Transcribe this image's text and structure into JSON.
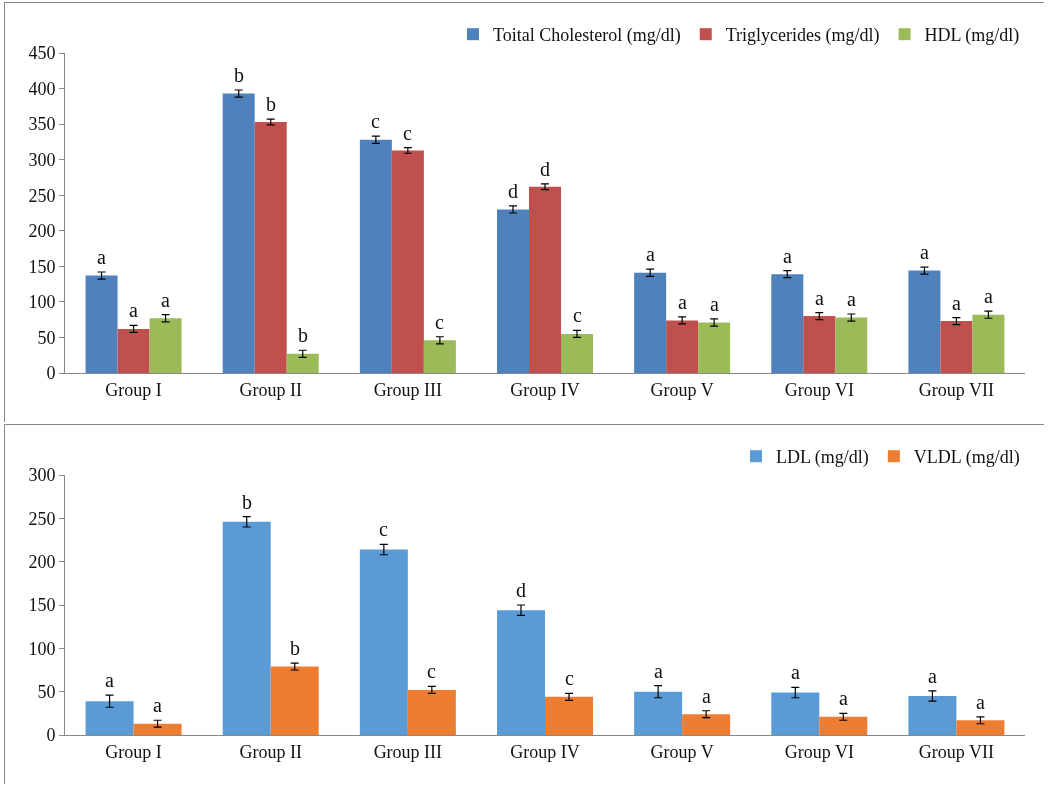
{
  "chart_data": [
    {
      "type": "bar",
      "categories": [
        "Group I",
        "Group II",
        "Group III",
        "Group IV",
        "Group V",
        "Group VI",
        "Group VII"
      ],
      "series": [
        {
          "name": "Toital Cholesterol (mg/dl)",
          "color": "#4f81bd",
          "values": [
            137,
            393,
            328,
            230,
            141,
            139,
            144
          ],
          "errors": [
            5,
            5,
            5,
            5,
            5,
            5,
            5
          ],
          "value_labels": [
            "a",
            "b",
            "c",
            "d",
            "a",
            "a",
            "a"
          ]
        },
        {
          "name": "Triglycerides (mg/dl)",
          "color": "#c0504d",
          "values": [
            62,
            353,
            313,
            262,
            74,
            80,
            73
          ],
          "errors": [
            5,
            4,
            4,
            4,
            5,
            5,
            5
          ],
          "value_labels": [
            "a",
            "b",
            "c",
            "d",
            "a",
            "a",
            "a"
          ]
        },
        {
          "name": "HDL (mg/dl)",
          "color": "#9bbb59",
          "values": [
            77,
            27,
            46,
            55,
            71,
            78,
            82
          ],
          "errors": [
            5,
            5,
            5,
            5,
            5,
            5,
            5
          ],
          "value_labels": [
            "a",
            "b",
            "c",
            "c",
            "a",
            "a",
            "a"
          ]
        }
      ],
      "ylim": [
        0,
        450
      ],
      "yticks": [
        0,
        50,
        100,
        150,
        200,
        250,
        300,
        350,
        400,
        450
      ],
      "grid": false,
      "legend": "top right"
    },
    {
      "type": "bar",
      "categories": [
        "Group I",
        "Group II",
        "Group III",
        "Group IV",
        "Group V",
        "Group VI",
        "Group VII"
      ],
      "series": [
        {
          "name": "LDL (mg/dl)",
          "color": "#5b9bd5",
          "values": [
            39,
            246,
            214,
            144,
            50,
            49,
            45
          ],
          "errors": [
            7,
            6,
            6,
            6,
            7,
            6,
            6
          ],
          "value_labels": [
            "a",
            "b",
            "c",
            "d",
            "a",
            "a",
            "a"
          ]
        },
        {
          "name": "VLDL (mg/dl)",
          "color": "#ed7d31",
          "values": [
            13,
            79,
            52,
            44,
            24,
            21,
            17
          ],
          "errors": [
            4,
            4,
            4,
            4,
            4,
            4,
            4
          ],
          "value_labels": [
            "a",
            "b",
            "c",
            "c",
            "a",
            "a",
            "a"
          ]
        }
      ],
      "ylim": [
        0,
        300
      ],
      "yticks": [
        0,
        50,
        100,
        150,
        200,
        250,
        300
      ],
      "grid": false,
      "legend": "top right"
    }
  ]
}
